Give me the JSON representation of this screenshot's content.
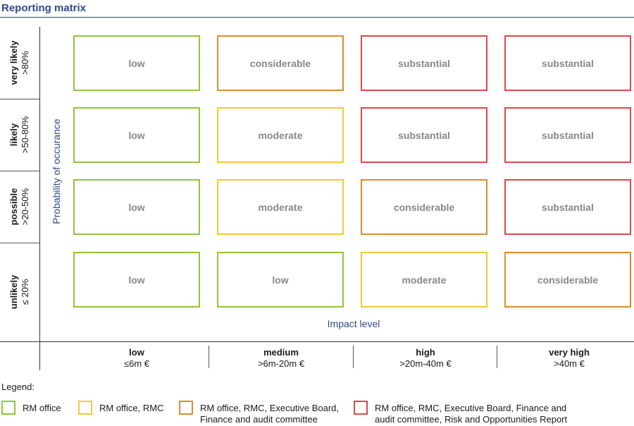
{
  "title": "Reporting matrix",
  "colors": {
    "green": "#8dc63f",
    "yellow": "#f2c83a",
    "orange": "#e08a2e",
    "red": "#d94a4a",
    "cell_text": "#888888",
    "accent": "#2e4a8c"
  },
  "y_axis_title": "Probability of occurance",
  "x_axis_title": "Impact level",
  "rows": [
    {
      "label": "very likely",
      "range": ">80%"
    },
    {
      "label": "likely",
      "range": ">50-80%"
    },
    {
      "label": "possible",
      "range": ">20-50%"
    },
    {
      "label": "unlikely",
      "range": "≤ 20%"
    }
  ],
  "columns": [
    {
      "label": "low",
      "range": "≤6m €"
    },
    {
      "label": "medium",
      "range": ">6m-20m €"
    },
    {
      "label": "high",
      "range": ">20m-40m €"
    },
    {
      "label": "very high",
      "range": ">40m €"
    }
  ],
  "cells": [
    [
      {
        "text": "low",
        "color": "green"
      },
      {
        "text": "considerable",
        "color": "orange"
      },
      {
        "text": "substantial",
        "color": "red"
      },
      {
        "text": "substantial",
        "color": "red"
      }
    ],
    [
      {
        "text": "low",
        "color": "green"
      },
      {
        "text": "moderate",
        "color": "yellow"
      },
      {
        "text": "substantial",
        "color": "red"
      },
      {
        "text": "substantial",
        "color": "red"
      }
    ],
    [
      {
        "text": "low",
        "color": "green"
      },
      {
        "text": "moderate",
        "color": "yellow"
      },
      {
        "text": "considerable",
        "color": "orange"
      },
      {
        "text": "substantial",
        "color": "red"
      }
    ],
    [
      {
        "text": "low",
        "color": "green"
      },
      {
        "text": "low",
        "color": "green"
      },
      {
        "text": "moderate",
        "color": "yellow"
      },
      {
        "text": "considerable",
        "color": "orange"
      }
    ]
  ],
  "legend": {
    "title": "Legend:",
    "items": [
      {
        "color": "green",
        "line1": "RM office",
        "line2": ""
      },
      {
        "color": "yellow",
        "line1": "RM office, RMC",
        "line2": ""
      },
      {
        "color": "orange",
        "line1": "RM office, RMC, Executive Board,",
        "line2": "Finance and audit committee"
      },
      {
        "color": "red",
        "line1": "RM office, RMC, Executive Board, Finance and",
        "line2": "audit committee, Risk and Opportunities Report"
      }
    ]
  }
}
